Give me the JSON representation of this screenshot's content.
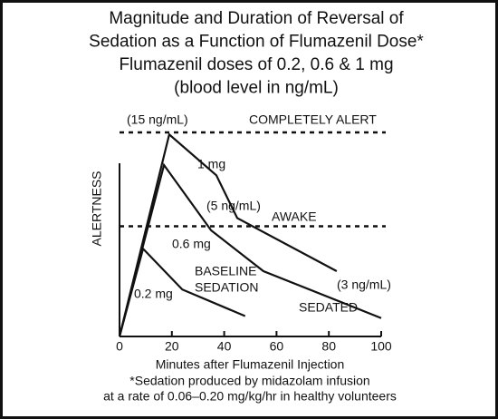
{
  "chart_data": {
    "type": "line",
    "title": [
      "Magnitude and Duration of Reversal of",
      "Sedation as a Function of Flumazenil Dose*",
      "Flumazenil doses of 0.2, 0.6 & 1 mg",
      "(blood level in ng/mL)"
    ],
    "x_label": "Minutes after Flumazenil Injection",
    "y_label": "ALERTNESS",
    "footnote": [
      "*Sedation produced by midazolam infusion",
      "at a rate of 0.06–0.20 mg/kg/hr in healthy volunteers"
    ],
    "xlim": [
      0,
      100
    ],
    "xticks": [
      0,
      20,
      40,
      60,
      80,
      100
    ],
    "ylim": [
      0,
      100
    ],
    "reference_lines": [
      {
        "label": "COMPLETELY ALERT",
        "value": 100
      },
      {
        "label": "AWAKE",
        "value": 54
      }
    ],
    "series": [
      {
        "name": "1 mg",
        "color": "#111111",
        "x": [
          0,
          19,
          37,
          45,
          83
        ],
        "values": [
          0,
          99,
          79,
          58,
          32
        ]
      },
      {
        "name": "0.6 mg",
        "color": "#111111",
        "x": [
          0,
          17,
          35,
          55,
          100
        ],
        "values": [
          0,
          84,
          52,
          32,
          9
        ]
      },
      {
        "name": "0.2 mg",
        "color": "#111111",
        "x": [
          0,
          9,
          24,
          48
        ],
        "values": [
          0,
          43,
          23,
          10
        ]
      }
    ],
    "annotations": [
      "(15 ng/mL)",
      "(5 ng/mL)",
      "(3 ng/mL)",
      "BASELINE",
      "SEDATION",
      "SEDATED"
    ]
  }
}
